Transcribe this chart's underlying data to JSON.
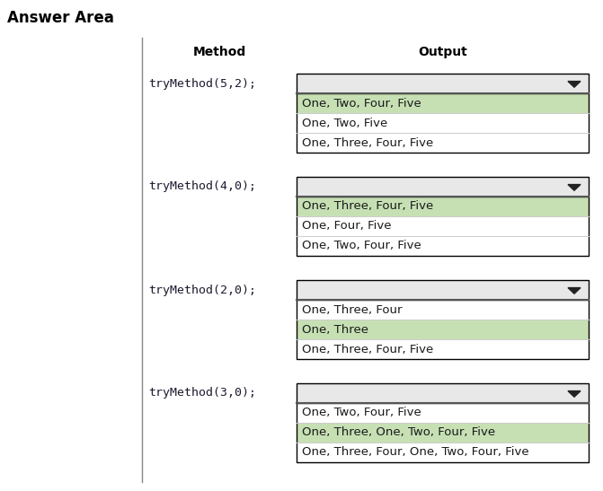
{
  "title": "Answer Area",
  "col_method": "Method",
  "col_output": "Output",
  "title_fontsize": 12,
  "header_fontsize": 10,
  "body_fontsize": 9.5,
  "code_fontsize": 9.5,
  "background": "#ffffff",
  "rows": [
    {
      "method": "tryMethod(5,2);",
      "options": [
        {
          "text": "One, Two, Four, Five",
          "highlighted": true
        },
        {
          "text": "One, Two, Five",
          "highlighted": false
        },
        {
          "text": "One, Three, Four, Five",
          "highlighted": false
        }
      ]
    },
    {
      "method": "tryMethod(4,0);",
      "options": [
        {
          "text": "One, Three, Four, Five",
          "highlighted": true
        },
        {
          "text": "One, Four, Five",
          "highlighted": false
        },
        {
          "text": "One, Two, Four, Five",
          "highlighted": false
        }
      ]
    },
    {
      "method": "tryMethod(2,0);",
      "options": [
        {
          "text": "One, Three, Four",
          "highlighted": false
        },
        {
          "text": "One, Three",
          "highlighted": true
        },
        {
          "text": "One, Three, Four, Five",
          "highlighted": false
        }
      ]
    },
    {
      "method": "tryMethod(3,0);",
      "options": [
        {
          "text": "One, Two, Four, Five",
          "highlighted": false
        },
        {
          "text": "One, Three, One, Two, Four, Five",
          "highlighted": true
        },
        {
          "text": "One, Three, Four, One, Two, Four, Five",
          "highlighted": false
        }
      ]
    }
  ],
  "dropdown_bg": "#e8e8e8",
  "highlight_color": "#c6e0b4",
  "border_color": "#000000",
  "separator_color": "#555555"
}
